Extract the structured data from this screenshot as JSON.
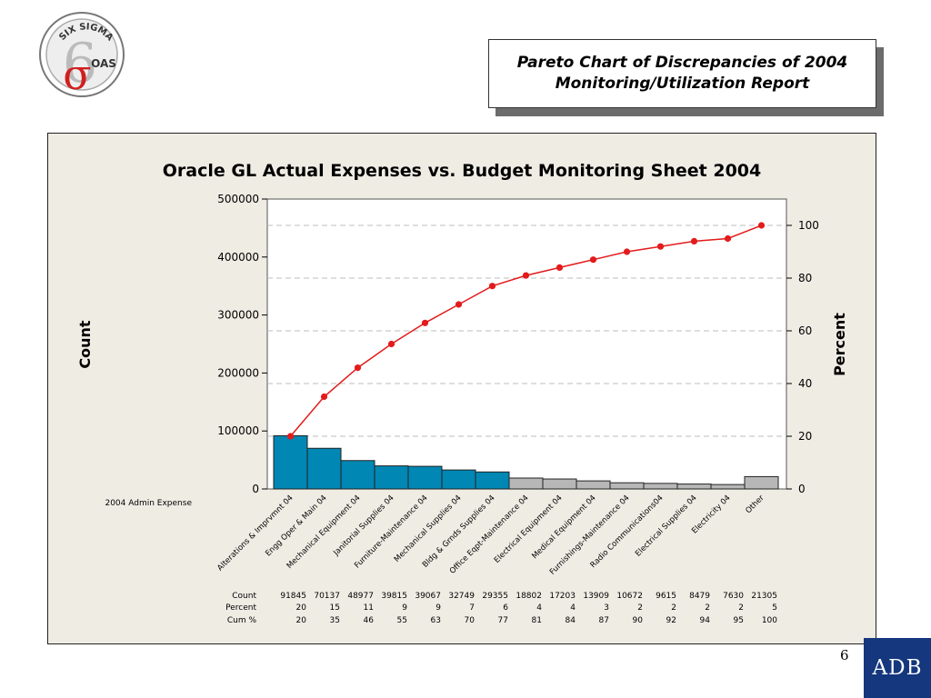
{
  "logo": {
    "text_top": "SIX SIGMA",
    "text_side": "OAS",
    "mark": "6σ"
  },
  "slide_title": "Pareto Chart of Discrepancies of 2004 Monitoring/Utilization Report",
  "page_number": "6",
  "brand_badge": "ADB",
  "chart_data": {
    "type": "pareto",
    "title": "Oracle GL Actual Expenses vs. Budget Monitoring Sheet 2004",
    "ylabel": "Count",
    "y2label": "Percent",
    "ylim": [
      0,
      500000
    ],
    "y_ticks": [
      0,
      100000,
      200000,
      300000,
      400000,
      500000
    ],
    "y2lim": [
      0,
      110
    ],
    "y2_ticks": [
      0,
      20,
      40,
      60,
      80,
      100
    ],
    "x_axis_name": "2004 Admin Expense",
    "categories": [
      "Alterations & Imprvmnt 04",
      "Engg Oper & Main 04",
      "Mechanical Equipment 04",
      "Janitorial Supplies 04",
      "Furniture-Maintenance 04",
      "Mechanical Supplies 04",
      "Bldg & Grnds Supplies 04",
      "Office Eqpt-Maintenance 04",
      "Electrical Equipment 04",
      "Medical Equipment 04",
      "Furnishings-Maintenance 04",
      "Radio Communications04",
      "Electrical Supplies 04",
      "Electricity 04",
      "Other"
    ],
    "counts": [
      91845,
      70137,
      48977,
      39815,
      39067,
      32749,
      29355,
      18802,
      17203,
      13909,
      10672,
      9615,
      8479,
      7630,
      21305
    ],
    "percent": [
      20,
      15,
      11,
      9,
      9,
      7,
      6,
      4,
      4,
      3,
      2,
      2,
      2,
      2,
      5
    ],
    "cum_percent": [
      20,
      35,
      46,
      55,
      63,
      70,
      77,
      81,
      84,
      87,
      90,
      92,
      94,
      95,
      100
    ],
    "table_row_labels": {
      "count": "Count",
      "percent": "Percent",
      "cum": "Cum %"
    },
    "highlight_count": 7,
    "colors": {
      "bar_primary": "#0087b3",
      "bar_secondary": "#b7b7b7",
      "cum_line": "#e31b1b",
      "reference_lines": "#bdbdbd",
      "panel_bg": "#efece4"
    }
  }
}
